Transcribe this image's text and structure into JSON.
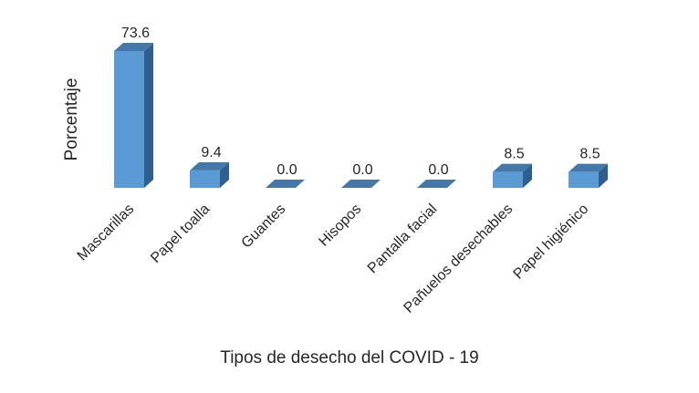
{
  "chart_data": {
    "type": "bar",
    "categories": [
      "Mascarillas",
      "Papel toalla",
      "Guantes",
      "Hisopos",
      "Pantalla facial",
      "Pañuelos desechables",
      "Papel higiénico"
    ],
    "values": [
      73.6,
      9.4,
      0.0,
      0.0,
      0.0,
      8.5,
      8.5
    ],
    "value_labels": [
      "73.6",
      "9.4",
      "0.0",
      "0.0",
      "0.0",
      "8.5",
      "8.5"
    ],
    "xlabel": "Tipos de desecho del COVID - 19",
    "ylabel": "Porcentaje",
    "ylim": [
      0,
      80
    ],
    "grid": false,
    "legend": "none",
    "style": "3d-column",
    "colors": {
      "front": "#5b9bd5",
      "side": "#2e5f8f",
      "top": "#4478a8",
      "text": "#262626"
    }
  }
}
